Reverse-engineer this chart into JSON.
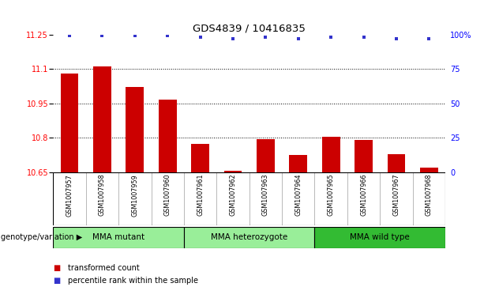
{
  "title": "GDS4839 / 10416835",
  "samples": [
    "GSM1007957",
    "GSM1007958",
    "GSM1007959",
    "GSM1007960",
    "GSM1007961",
    "GSM1007962",
    "GSM1007963",
    "GSM1007964",
    "GSM1007965",
    "GSM1007966",
    "GSM1007967",
    "GSM1007968"
  ],
  "bar_values": [
    11.08,
    11.11,
    11.02,
    10.965,
    10.775,
    10.655,
    10.795,
    10.725,
    10.805,
    10.79,
    10.73,
    10.67
  ],
  "percentile_values": [
    99,
    99,
    99,
    99,
    98,
    97,
    98,
    97,
    98,
    98,
    97,
    97
  ],
  "bar_color": "#cc0000",
  "percentile_color": "#3333cc",
  "ylim_left": [
    10.65,
    11.25
  ],
  "ylim_right": [
    0,
    100
  ],
  "yticks_left": [
    10.65,
    10.8,
    10.95,
    11.1,
    11.25
  ],
  "yticks_right": [
    0,
    25,
    50,
    75,
    100
  ],
  "ytick_labels_right": [
    "0",
    "25",
    "50",
    "75",
    "100%"
  ],
  "bar_width": 0.55,
  "background_color": "#ffffff",
  "plot_bg_color": "#ffffff",
  "sample_bg_color": "#cccccc",
  "genotype_label": "genotype/variation",
  "group_defs": [
    {
      "label": "MMA mutant",
      "start": 0,
      "end": 3,
      "color": "#99ee99"
    },
    {
      "label": "MMA heterozygote",
      "start": 4,
      "end": 7,
      "color": "#99ee99"
    },
    {
      "label": "MMA wild type",
      "start": 8,
      "end": 11,
      "color": "#33bb33"
    }
  ],
  "legend_items": [
    {
      "label": "transformed count",
      "color": "#cc0000"
    },
    {
      "label": "percentile rank within the sample",
      "color": "#3333cc"
    }
  ]
}
